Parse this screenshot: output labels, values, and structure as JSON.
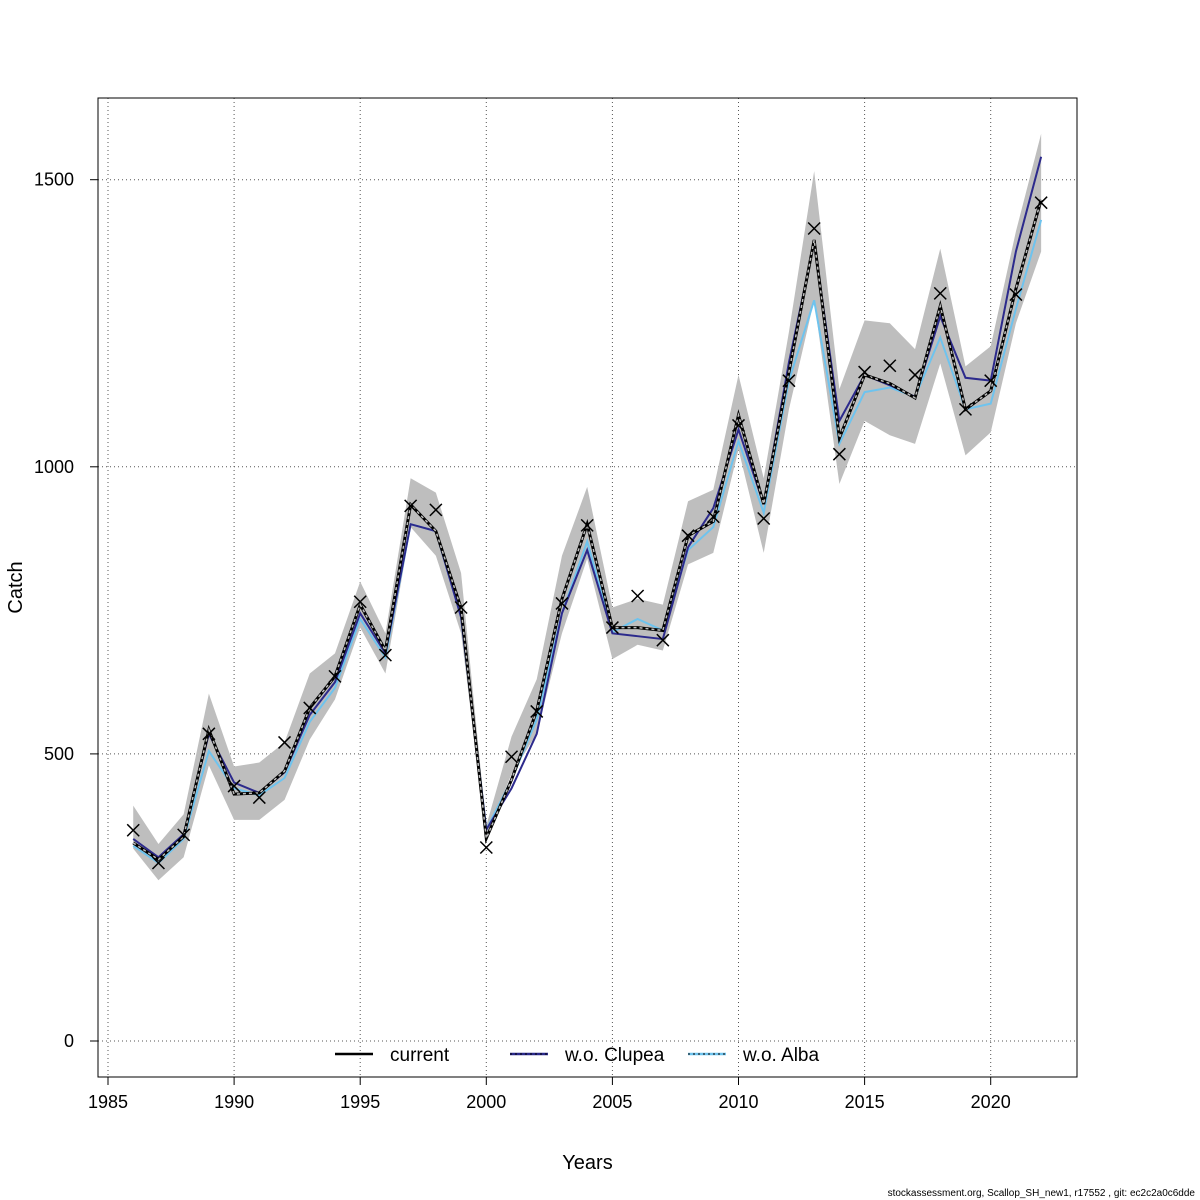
{
  "chart_data": {
    "type": "line",
    "xlabel": "Years",
    "ylabel": "Catch",
    "xlim": [
      1985,
      2023
    ],
    "ylim": [
      -60,
      1650
    ],
    "xticks": [
      1985,
      1990,
      1995,
      2000,
      2005,
      2010,
      2015,
      2020
    ],
    "yticks": [
      0,
      500,
      1000,
      1500
    ],
    "grid": true,
    "legend_position": "bottom",
    "x": [
      1986,
      1987,
      1988,
      1989,
      1990,
      1991,
      1992,
      1993,
      1994,
      1995,
      1996,
      1997,
      1998,
      1999,
      2000,
      2001,
      2002,
      2003,
      2004,
      2005,
      2006,
      2007,
      2008,
      2009,
      2010,
      2011,
      2012,
      2013,
      2014,
      2015,
      2016,
      2017,
      2018,
      2019,
      2020,
      2021,
      2022
    ],
    "observed": [
      367,
      310,
      359,
      535,
      444,
      424,
      520,
      580,
      635,
      765,
      672,
      932,
      925,
      755,
      337,
      495,
      574,
      762,
      898,
      720,
      775,
      698,
      880,
      913,
      1072,
      910,
      1150,
      1415,
      1022,
      1165,
      1176,
      1160,
      1302,
      1100,
      1150,
      1300,
      1460
    ],
    "band_upper": [
      410,
      343,
      395,
      605,
      478,
      485,
      520,
      640,
      675,
      800,
      710,
      980,
      955,
      815,
      375,
      530,
      630,
      845,
      965,
      755,
      770,
      760,
      940,
      960,
      1160,
      980,
      1235,
      1515,
      1135,
      1255,
      1250,
      1205,
      1380,
      1175,
      1210,
      1410,
      1580
    ],
    "band_lower": [
      335,
      280,
      320,
      480,
      385,
      385,
      420,
      525,
      595,
      720,
      640,
      895,
      845,
      710,
      355,
      465,
      535,
      710,
      840,
      665,
      690,
      680,
      830,
      850,
      1030,
      850,
      1100,
      1290,
      970,
      1080,
      1055,
      1040,
      1180,
      1020,
      1060,
      1250,
      1375
    ],
    "series": [
      {
        "name": "current",
        "color": "#000000",
        "dash": "dashed",
        "values": [
          345,
          316,
          356,
          542,
          430,
          432,
          470,
          580,
          635,
          760,
          680,
          934,
          888,
          754,
          353,
          455,
          575,
          770,
          900,
          720,
          720,
          715,
          880,
          905,
          1090,
          935,
          1165,
          1395,
          1050,
          1160,
          1145,
          1120,
          1280,
          1100,
          1132,
          1310,
          1465
        ]
      },
      {
        "name": "w.o. Clupea",
        "color": "#2c2a8c",
        "dash": "solid",
        "values": [
          352,
          320,
          360,
          535,
          450,
          432,
          468,
          568,
          625,
          745,
          675,
          900,
          888,
          738,
          368,
          440,
          535,
          745,
          855,
          710,
          705,
          700,
          860,
          928,
          1065,
          935,
          1182,
          1390,
          1080,
          1160,
          1142,
          1122,
          1262,
          1155,
          1150,
          1375,
          1540
        ]
      },
      {
        "name": "w.o. Alba",
        "color": "#6ec3ee",
        "dash": "solid",
        "values": [
          340,
          310,
          352,
          505,
          440,
          428,
          458,
          556,
          615,
          735,
          668,
          900,
          888,
          738,
          368,
          455,
          560,
          745,
          870,
          712,
          735,
          715,
          855,
          895,
          1045,
          920,
          1150,
          1290,
          1040,
          1130,
          1138,
          1122,
          1225,
          1100,
          1110,
          1275,
          1430
        ]
      }
    ]
  },
  "footnote": "stockassessment.org, Scallop_SH_new1, r17552 , git: ec2c2a0c6dde"
}
